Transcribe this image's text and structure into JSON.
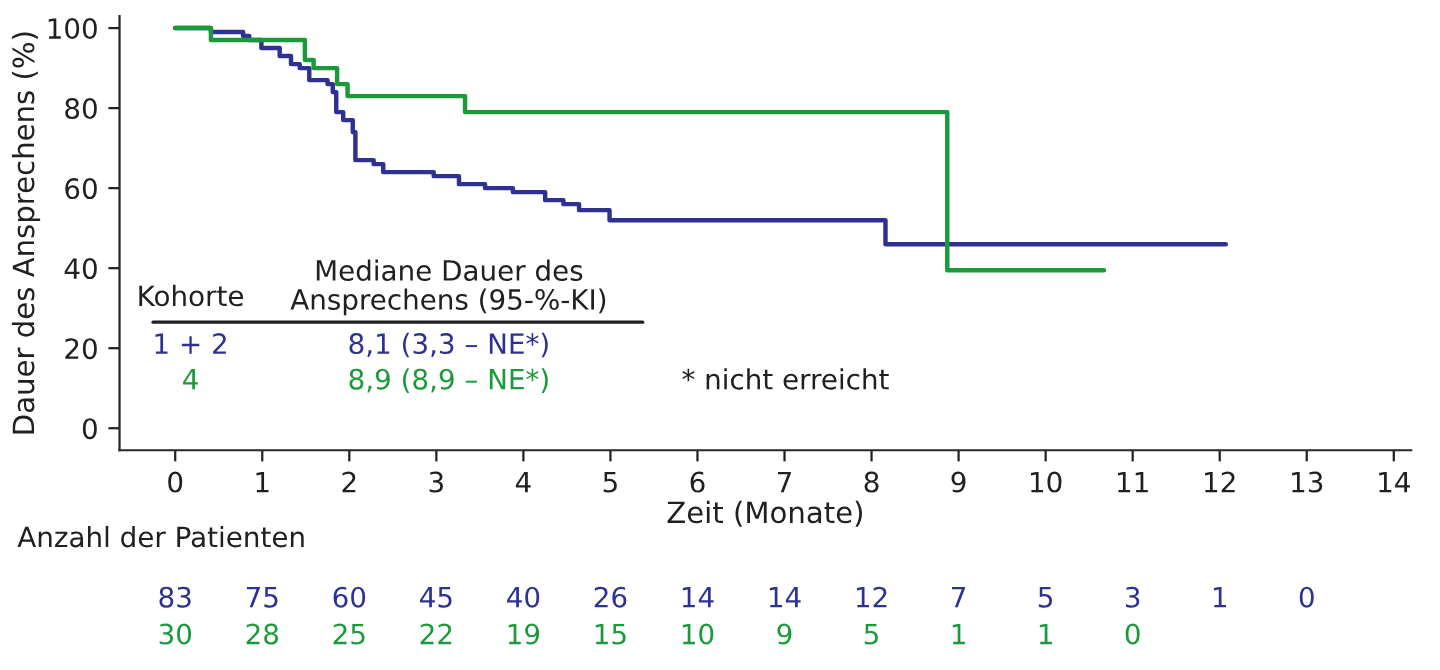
{
  "chart_data": {
    "type": "step",
    "xlabel": "Zeit (Monate)",
    "ylabel": "Dauer des Ansprechens (%)",
    "xlim": [
      -0.64,
      14.2
    ],
    "ylim": [
      -5.5,
      103
    ],
    "xticks": [
      0,
      1,
      2,
      3,
      4,
      5,
      6,
      7,
      8,
      9,
      10,
      11,
      12,
      13,
      14
    ],
    "yticks": [
      0,
      20,
      40,
      60,
      80,
      100
    ],
    "grid": false,
    "legend": false,
    "marker": "none",
    "line_style": "solid",
    "series": [
      {
        "color": "#2e3192",
        "x": [
          0,
          0.41,
          0.78,
          0.85,
          0.99,
          1.2,
          1.33,
          1.43,
          1.54,
          1.75,
          1.81,
          1.85,
          1.93,
          2.04,
          2.07,
          2.28,
          2.39,
          2.97,
          3.26,
          3.56,
          3.88,
          4.25,
          4.46,
          4.64,
          4.99,
          8.16,
          12.07
        ],
        "values": [
          100,
          99,
          98,
          97,
          95,
          93,
          91,
          90,
          87,
          86,
          84,
          79,
          77,
          74,
          67,
          66,
          64,
          63,
          61,
          60,
          59,
          57,
          56,
          54.5,
          52,
          46,
          46
        ]
      },
      {
        "color": "#1a9a3a",
        "x": [
          0,
          0.41,
          1.49,
          1.59,
          1.86,
          1.98,
          3.33,
          8.87,
          10.67
        ],
        "values": [
          100,
          97,
          92,
          90,
          86,
          83,
          79,
          39.5,
          39.5
        ]
      }
    ],
    "annotations": [
      "Kohorte",
      "Mediane Dauer des\nAnsprechens (95-%-KI)",
      "1 + 2",
      "8,1 (3,3 – NE*)",
      "4",
      "8,9 (8,9 – NE*)",
      "* nicht erreicht",
      "Anzahl der Patienten",
      "83",
      "75",
      "60",
      "45",
      "40",
      "26",
      "14",
      "14",
      "12",
      "7",
      "5",
      "3",
      "1",
      "0",
      "30",
      "28",
      "25",
      "22",
      "19",
      "15",
      "10",
      "9",
      "5",
      "1",
      "1",
      "0"
    ]
  }
}
